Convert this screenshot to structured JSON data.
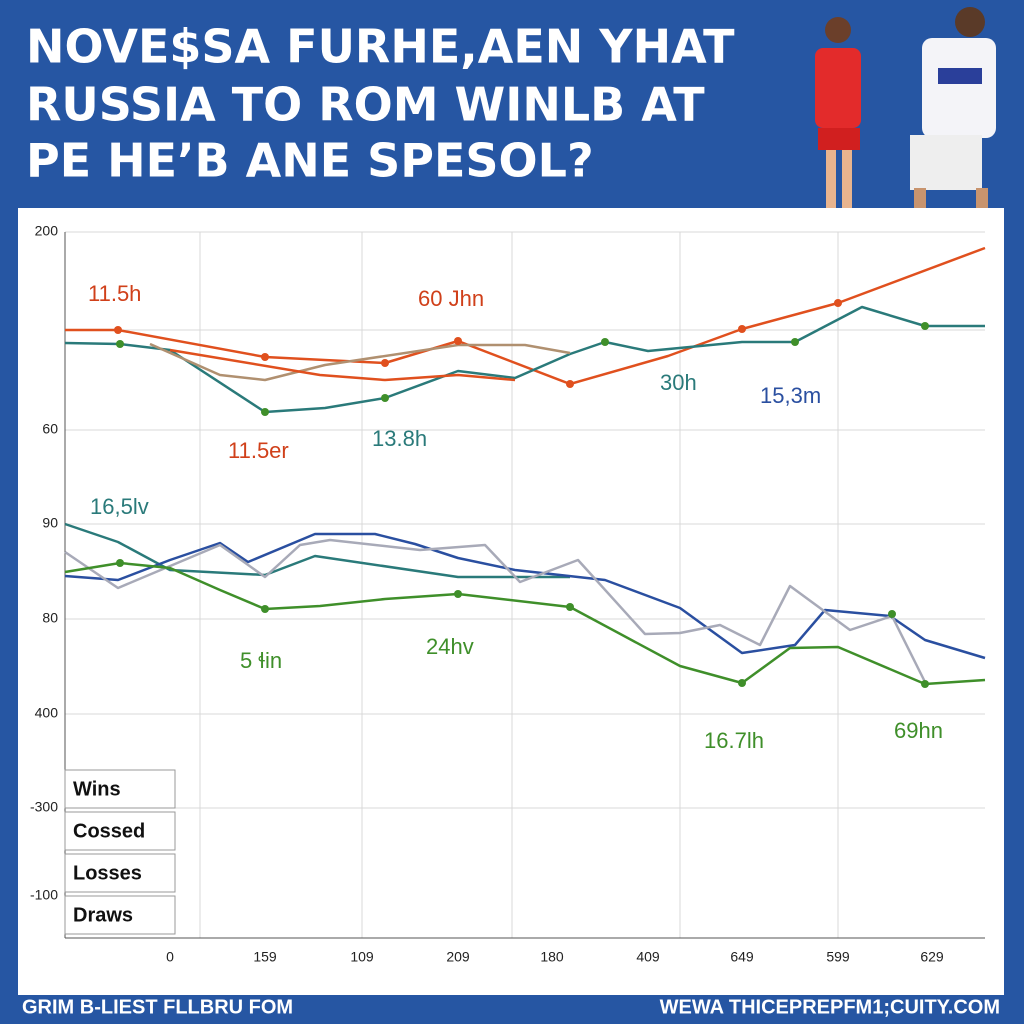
{
  "header": {
    "lines": [
      "NOVE$SA FURHE,AEN YHAT",
      "RUSSIA TO ROM WINLB AT",
      "PE HE’B ANE SPESOL?"
    ]
  },
  "y_axis_labels": [
    "200",
    "60",
    "90",
    "80",
    "400",
    "-300",
    "-100"
  ],
  "x_axis_labels": [
    "0",
    "159",
    "109",
    "209",
    "180",
    "409",
    "649",
    "599",
    "629"
  ],
  "annotations": [
    "11.5h",
    "60 Jhn",
    "11.5er",
    "13.8h",
    "30h",
    "15,3m",
    "16,5lv",
    "5 ɬin",
    "24hv",
    "16.7lh",
    "69hn"
  ],
  "legend": [
    "Wins",
    "Cossed",
    "Losses",
    "Draws"
  ],
  "footer": {
    "left": "GRIM B-LIEST FLLBRU FOM",
    "right": "WEWA THICEPREPFM1;CUITY.COM"
  }
}
